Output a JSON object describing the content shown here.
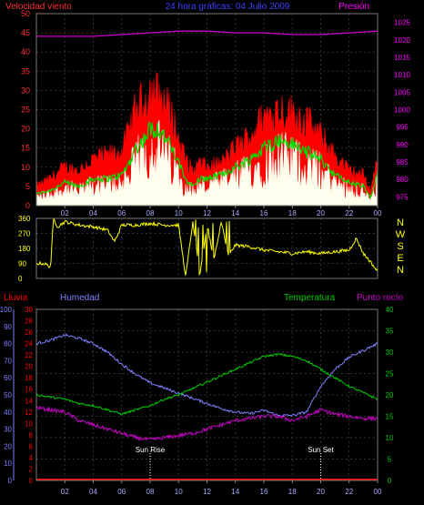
{
  "header": {
    "left_label": "Velocidad viento",
    "title": "24 hora gráficas: 04 Julio 2009",
    "right_label": "Presión"
  },
  "lower_header": {
    "rain": "Lluvia",
    "humidity": "Humedad",
    "temperature": "Temperatura",
    "dewpoint": "Punto rocío"
  },
  "colors": {
    "wind_axis": "#ff3030",
    "pressure_axis": "#ff00ff",
    "title": "#4040ff",
    "wind_gust": "#ff0000",
    "wind_avg": "#00dd00",
    "wind_speed": "#ffffee",
    "pressure": "#cc00cc",
    "direction": "#ffff00",
    "rain": "#ff0000",
    "humidity": "#8080ff",
    "temperature": "#00cc00",
    "dewpoint": "#cc00cc",
    "grid": "#333333",
    "compass": "#ffff00"
  },
  "x_ticks": [
    "02",
    "04",
    "06",
    "08",
    "10",
    "12",
    "14",
    "16",
    "18",
    "20",
    "22",
    "00"
  ],
  "compass_labels": [
    "N",
    "W",
    "S",
    "E",
    "N"
  ],
  "annotations": {
    "sun_rise": "Sun Rise",
    "sun_set": "Sun Set"
  },
  "chart_data": [
    {
      "type": "line",
      "name": "wind",
      "title": "Velocidad viento",
      "y_left_ticks": [
        0,
        5,
        10,
        15,
        20,
        25,
        30,
        35,
        40,
        45,
        50
      ],
      "y_left_range": [
        0,
        50
      ],
      "y_right_ticks": [
        975,
        980,
        985,
        990,
        995,
        1000,
        1005,
        1010,
        1015,
        1020,
        1025
      ],
      "y_right_range": [
        972.5,
        1027.5
      ],
      "x_range_hours": [
        0,
        24
      ],
      "gust_profile": {
        "x": [
          0,
          1,
          2,
          3,
          4,
          5,
          6,
          6.5,
          7,
          7.5,
          8,
          8.5,
          9,
          9.5,
          10,
          10.5,
          11,
          11.5,
          12,
          13,
          14,
          15,
          16,
          17,
          18,
          19,
          20,
          21,
          22,
          23,
          23.5,
          24
        ],
        "y": [
          5,
          7,
          10,
          9,
          12,
          13,
          14,
          19,
          25,
          27,
          30,
          29,
          27,
          24,
          17,
          12,
          9,
          11,
          10,
          11,
          15,
          18,
          23,
          25,
          24,
          22,
          18,
          13,
          9,
          8,
          4,
          12
        ]
      },
      "average_profile": {
        "x": [
          0,
          1,
          2,
          3,
          4,
          5,
          6,
          6.5,
          7,
          7.5,
          8,
          8.5,
          9,
          9.5,
          10,
          10.5,
          11,
          11.5,
          12,
          13,
          14,
          15,
          16,
          17,
          18,
          19,
          20,
          21,
          22,
          23,
          23.5,
          24
        ],
        "y": [
          3,
          4,
          6,
          5,
          7,
          7,
          8,
          11,
          15,
          17,
          20,
          20,
          18,
          15,
          11,
          7,
          5,
          7,
          7,
          8,
          10,
          12,
          15,
          17,
          16,
          14,
          12,
          8,
          6,
          5,
          2,
          8
        ]
      },
      "pressure": {
        "x": [
          0,
          2,
          4,
          6,
          8,
          10,
          12,
          14,
          16,
          18,
          20,
          22,
          24
        ],
        "y": [
          1021,
          1021,
          1021,
          1021.5,
          1022,
          1022.5,
          1022.5,
          1022,
          1022,
          1021.5,
          1021.5,
          1022,
          1022.5
        ]
      }
    },
    {
      "type": "line",
      "name": "wind_direction",
      "y_ticks": [
        0,
        90,
        180,
        270,
        360
      ],
      "y_range": [
        0,
        360
      ],
      "x": [
        0,
        0.5,
        1,
        1.2,
        1.5,
        2,
        3,
        4,
        5,
        5.5,
        6,
        7,
        8,
        9,
        10,
        10.5,
        11,
        11.5,
        12,
        12.5,
        13,
        13.5,
        14,
        15,
        16,
        17,
        18,
        19,
        20,
        21,
        22,
        22.5,
        23,
        23.5,
        24
      ],
      "y": [
        90,
        90,
        70,
        360,
        310,
        340,
        320,
        310,
        290,
        220,
        320,
        320,
        330,
        320,
        320,
        10,
        340,
        30,
        310,
        120,
        340,
        140,
        200,
        190,
        170,
        160,
        150,
        160,
        150,
        160,
        170,
        240,
        150,
        100,
        40
      ]
    },
    {
      "type": "line",
      "name": "humidity_temp",
      "y_rain_ticks": [
        0,
        2,
        4,
        6,
        8,
        10,
        12,
        14,
        16,
        18,
        20,
        22,
        24,
        26,
        28,
        30
      ],
      "y_rain_range": [
        0,
        30
      ],
      "y_humidity_ticks": [
        0,
        10,
        20,
        30,
        40,
        50,
        60,
        70,
        80,
        90,
        100
      ],
      "y_humidity_range": [
        0,
        100
      ],
      "y_temp_ticks": [
        0,
        5,
        10,
        15,
        20,
        25,
        30,
        35,
        40
      ],
      "y_temp_range": [
        0,
        40
      ],
      "humidity": {
        "x": [
          0,
          1,
          2,
          3,
          4,
          5,
          6,
          7,
          8,
          9,
          10,
          11,
          12,
          13,
          14,
          15,
          16,
          17,
          18,
          19,
          20,
          21,
          22,
          23,
          24
        ],
        "y": [
          80,
          82,
          85,
          83,
          80,
          75,
          68,
          62,
          57,
          54,
          51,
          48,
          45,
          42,
          40,
          39,
          41,
          38,
          38,
          40,
          55,
          65,
          72,
          76,
          80
        ]
      },
      "temperature": {
        "x": [
          0,
          1,
          2,
          3,
          4,
          5,
          6,
          7,
          8,
          9,
          10,
          11,
          12,
          13,
          14,
          15,
          16,
          17,
          18,
          19,
          20,
          21,
          22,
          23,
          24
        ],
        "y": [
          20,
          19.5,
          19,
          18,
          17.5,
          16.5,
          15.5,
          16.5,
          17.5,
          19,
          20,
          21.5,
          23,
          24.5,
          26,
          27.5,
          29,
          29.5,
          29,
          28,
          26,
          24,
          22,
          20.5,
          19
        ]
      },
      "dewpoint": {
        "x": [
          0,
          1,
          2,
          3,
          4,
          5,
          6,
          7,
          8,
          9,
          10,
          11,
          12,
          13,
          14,
          15,
          16,
          17,
          18,
          19,
          20,
          21,
          22,
          23,
          24
        ],
        "y": [
          17,
          16.5,
          16,
          14,
          13,
          12,
          11,
          10,
          9.5,
          10,
          10.5,
          11,
          12,
          13,
          14,
          14.5,
          15,
          15,
          14,
          15,
          16.5,
          15.5,
          15,
          14.5,
          14.5
        ]
      },
      "rain": {
        "x": [
          0,
          24
        ],
        "y": [
          0,
          0
        ]
      },
      "sun_rise_hour": 8,
      "sun_set_hour": 20
    }
  ]
}
